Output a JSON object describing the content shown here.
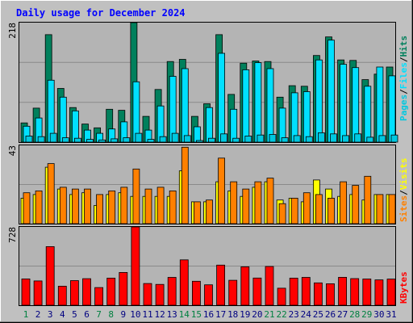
{
  "title": "Daily usage for December 2024",
  "colors": {
    "background": "#c0c0c0",
    "plot_background": "#b4b4b4",
    "title": "#0000ff",
    "hits": "#00805c",
    "files": "#00e0ff",
    "pages": "#00c8e0",
    "sites": "#ff8000",
    "visits": "#ffff00",
    "kbytes": "#ff0000",
    "weekend_day": "#008040",
    "weekday": "#000080"
  },
  "legend": {
    "hits": "Hits",
    "files": "Files",
    "pages": "Pages",
    "sites": "Sites",
    "visits": "Visits",
    "kbytes": "KBytes",
    "separator": "/"
  },
  "chart_data": [
    {
      "type": "bar",
      "title": "Daily usage for December 2024",
      "panel": "hits_files_pages",
      "categories": [
        "1",
        "2",
        "3",
        "4",
        "5",
        "6",
        "7",
        "8",
        "9",
        "10",
        "11",
        "12",
        "13",
        "14",
        "15",
        "16",
        "17",
        "18",
        "19",
        "20",
        "21",
        "22",
        "23",
        "24",
        "25",
        "26",
        "27",
        "28",
        "29",
        "30",
        "31"
      ],
      "weekend_days": [
        "1",
        "7",
        "8",
        "14",
        "15",
        "21",
        "22",
        "28",
        "29"
      ],
      "ymax_label": "218",
      "ylim": [
        0,
        218
      ],
      "series": [
        {
          "name": "Hits",
          "values": [
            35,
            62,
            196,
            98,
            63,
            33,
            26,
            60,
            58,
            218,
            47,
            96,
            147,
            151,
            47,
            70,
            196,
            87,
            144,
            148,
            147,
            82,
            103,
            102,
            158,
            192,
            150,
            149,
            114,
            124,
            137
          ]
        },
        {
          "name": "Files",
          "values": [
            29,
            44,
            113,
            82,
            57,
            22,
            16,
            24,
            37,
            110,
            22,
            66,
            120,
            134,
            28,
            63,
            162,
            60,
            132,
            145,
            134,
            62,
            90,
            92,
            150,
            186,
            142,
            136,
            102,
            137,
            121
          ]
        },
        {
          "name": "Pages",
          "values": [
            11,
            10,
            16,
            8,
            7,
            5,
            4,
            6,
            8,
            16,
            5,
            10,
            16,
            12,
            3,
            7,
            15,
            7,
            11,
            13,
            14,
            8,
            12,
            10,
            17,
            15,
            12,
            15,
            9,
            12,
            13
          ]
        }
      ]
    },
    {
      "type": "bar",
      "panel": "sites_visits",
      "categories": [
        "1",
        "2",
        "3",
        "4",
        "5",
        "6",
        "7",
        "8",
        "9",
        "10",
        "11",
        "12",
        "13",
        "14",
        "15",
        "16",
        "17",
        "18",
        "19",
        "20",
        "21",
        "22",
        "23",
        "24",
        "25",
        "26",
        "27",
        "28",
        "29",
        "30",
        "31"
      ],
      "ymax_label": "43",
      "ylim": [
        0,
        43
      ],
      "series": [
        {
          "name": "Sites",
          "values": [
            17,
            18,
            33,
            20,
            19,
            19,
            16,
            18,
            20,
            30,
            19,
            20,
            18,
            42,
            12,
            13,
            36,
            23,
            19,
            23,
            25,
            11,
            14,
            17,
            16,
            14,
            23,
            21,
            26,
            16,
            16
          ]
        },
        {
          "name": "Visits",
          "values": [
            14,
            16,
            31,
            19,
            16,
            17,
            10,
            16,
            17,
            15,
            15,
            15,
            15,
            29,
            12,
            12,
            23,
            18,
            15,
            20,
            23,
            13,
            14,
            12,
            24,
            19,
            15,
            16,
            13,
            16,
            16
          ]
        }
      ]
    },
    {
      "type": "bar",
      "panel": "kbytes",
      "categories": [
        "1",
        "2",
        "3",
        "4",
        "5",
        "6",
        "7",
        "8",
        "9",
        "10",
        "11",
        "12",
        "13",
        "14",
        "15",
        "16",
        "17",
        "18",
        "19",
        "20",
        "21",
        "22",
        "23",
        "24",
        "25",
        "26",
        "27",
        "28",
        "29",
        "30",
        "31"
      ],
      "ymax_label": "728",
      "ylim": [
        0,
        728
      ],
      "series": [
        {
          "name": "KBytes",
          "values": [
            245,
            226,
            545,
            177,
            229,
            247,
            164,
            252,
            305,
            728,
            202,
            194,
            259,
            422,
            223,
            190,
            373,
            232,
            357,
            253,
            360,
            158,
            252,
            259,
            208,
            200,
            260,
            248,
            244,
            236,
            243
          ]
        }
      ]
    }
  ]
}
